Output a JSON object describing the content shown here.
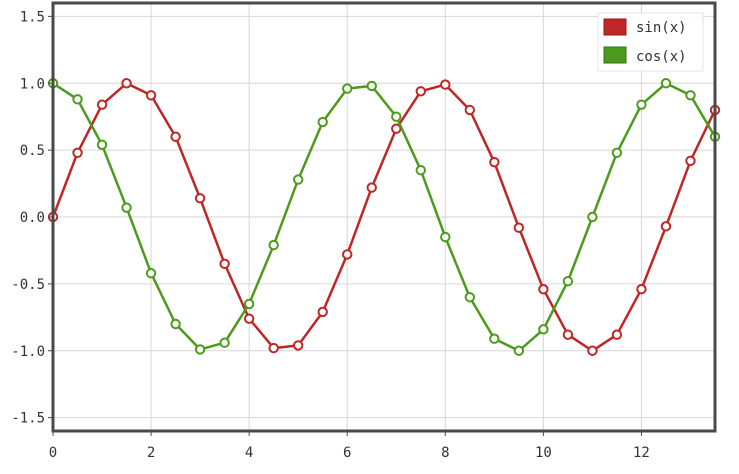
{
  "chart_data": {
    "type": "line",
    "x": [
      0,
      0.5,
      1,
      1.5,
      2,
      2.5,
      3,
      3.5,
      4,
      4.5,
      5,
      5.5,
      6,
      6.5,
      7,
      7.5,
      8,
      8.5,
      9,
      9.5,
      10,
      10.5,
      11,
      11.5,
      12,
      12.5,
      13,
      13.5
    ],
    "series": [
      {
        "name": "sin(x)",
        "color": "#c02626",
        "values": [
          0.0,
          0.48,
          0.84,
          1.0,
          0.91,
          0.6,
          0.14,
          -0.35,
          -0.76,
          -0.98,
          -0.96,
          -0.71,
          -0.28,
          0.22,
          0.66,
          0.94,
          0.99,
          0.8,
          0.41,
          -0.08,
          -0.54,
          -0.88,
          -1.0,
          -0.88,
          -0.54,
          -0.07,
          0.42,
          0.8
        ]
      },
      {
        "name": "cos(x)",
        "color": "#4c9b1c",
        "values": [
          1.0,
          0.88,
          0.54,
          0.07,
          -0.42,
          -0.8,
          -0.99,
          -0.94,
          -0.65,
          -0.21,
          0.28,
          0.71,
          0.96,
          0.98,
          0.75,
          0.35,
          -0.15,
          -0.6,
          -0.91,
          -1.0,
          -0.84,
          -0.48,
          0.0,
          0.48,
          0.84,
          1.0,
          0.91,
          0.6
        ]
      }
    ],
    "xlim": [
      0,
      13.5
    ],
    "ylim": [
      -1.6,
      1.6
    ],
    "xticks": [
      0,
      2,
      4,
      6,
      8,
      10,
      12
    ],
    "xtick_labels": [
      "0",
      "2",
      "4",
      "6",
      "8",
      "10",
      "12"
    ],
    "yticks": [
      -1.5,
      -1.0,
      -0.5,
      0.0,
      0.5,
      1.0,
      1.5
    ],
    "ytick_labels": [
      "-1.5",
      "-1.0",
      "-0.5",
      "0.0",
      "0.5",
      "1.0",
      "1.5"
    ],
    "title": "",
    "xlabel": "",
    "ylabel": "",
    "grid": true,
    "legend_position": "top-right"
  }
}
